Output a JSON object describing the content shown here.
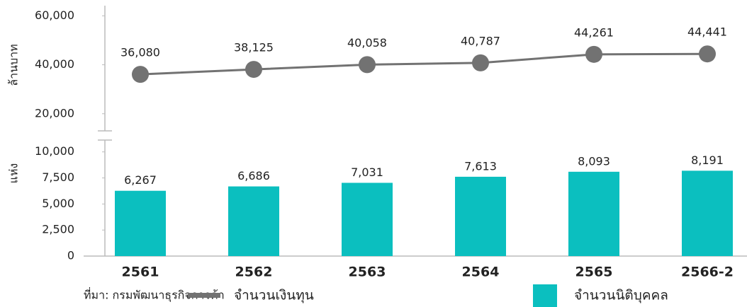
{
  "chart_data": [
    {
      "type": "line",
      "y_label": "ล้านบาท",
      "series": [
        {
          "name": "จำนวนเงินทุน",
          "color": "#727272",
          "values": [
            36080,
            38125,
            40058,
            40787,
            44261,
            44441
          ],
          "value_labels": [
            "36,080",
            "38,125",
            "40,058",
            "40,787",
            "44,261",
            "44,441"
          ]
        }
      ],
      "ylim": [
        13000,
        63000
      ],
      "yticks": [
        {
          "value": 20000,
          "label": "20,000"
        },
        {
          "value": 40000,
          "label": "40,000"
        },
        {
          "value": 60000,
          "label": "60,000"
        }
      ]
    },
    {
      "type": "bar",
      "y_label": "แห่ง",
      "categories": [
        "2561",
        "2562",
        "2563",
        "2564",
        "2565",
        "2566-2"
      ],
      "series": [
        {
          "name": "จำนวนนิติบุคคล",
          "color": "#0bbfbf",
          "values": [
            6267,
            6686,
            7031,
            7613,
            8093,
            8191
          ],
          "value_labels": [
            "6,267",
            "6,686",
            "7,031",
            "7,613",
            "8,093",
            "8,191"
          ]
        }
      ],
      "ylim": [
        0,
        11000
      ],
      "yticks": [
        0,
        {
          "value": 2500,
          "label": "2,500"
        },
        {
          "value": 5000,
          "label": "5,000"
        },
        {
          "value": 7500,
          "label": "7,500"
        },
        {
          "value": 10000,
          "label": "10,000"
        }
      ]
    }
  ],
  "source": "ที่มา: กรมพัฒนาธุรกิจการค้า"
}
